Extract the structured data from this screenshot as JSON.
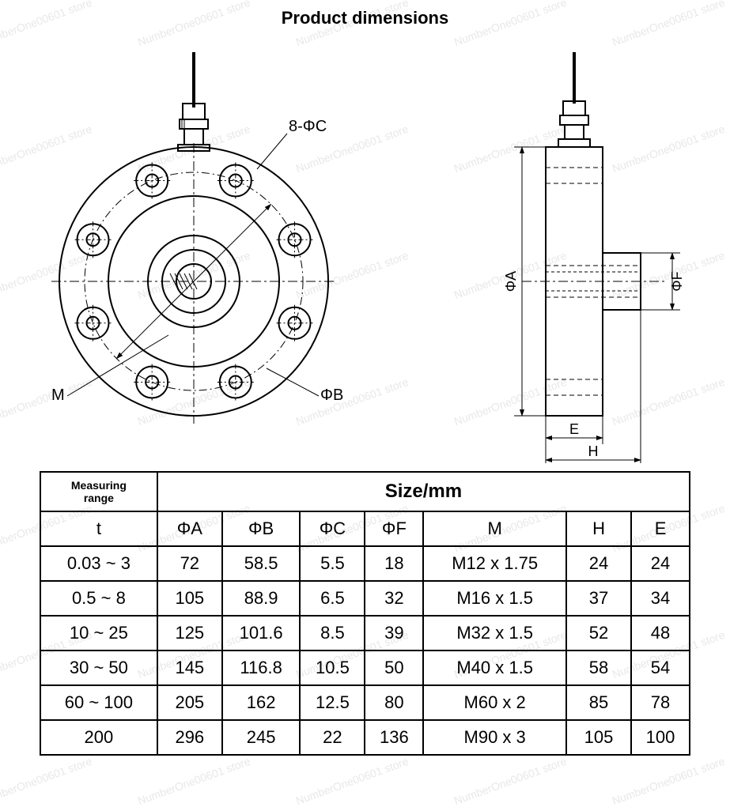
{
  "title": "Product dimensions",
  "watermark_text": "NumberOne00601 store",
  "diagram": {
    "stroke": "#000000",
    "stroke_width": 2,
    "dim_stroke": "#000000",
    "dim_width": 1,
    "dash": "8,4,2,4",
    "front": {
      "outer_r": 170,
      "inner_r1": 108,
      "inner_r2": 58,
      "hub_r1": 40,
      "hub_r2": 22,
      "bolt_circle_r": 138,
      "bolt_r": 20,
      "bolt_inner_r": 8,
      "bolt_count": 8
    },
    "labels": {
      "holes": "8-ΦC",
      "m": "M",
      "phiB": "ΦB",
      "phiA": "ΦA",
      "phiF": "ΦF",
      "E": "E",
      "H": "H"
    },
    "side": {
      "body_w": 72,
      "body_h": 340,
      "boss_w": 48,
      "boss_h": 72,
      "gland_h": 60
    }
  },
  "table": {
    "header_left": [
      "Measuring",
      "range"
    ],
    "header_right": "Size/mm",
    "subheaders": [
      "t",
      "ΦA",
      "ΦB",
      "ΦC",
      "ΦF",
      "M",
      "H",
      "E"
    ],
    "col_widths_pct": [
      18,
      10,
      12,
      10,
      9,
      22,
      10,
      9
    ],
    "rows": [
      [
        "0.03 ~ 3",
        "72",
        "58.5",
        "5.5",
        "18",
        "M12 x 1.75",
        "24",
        "24"
      ],
      [
        "0.5 ~ 8",
        "105",
        "88.9",
        "6.5",
        "32",
        "M16 x 1.5",
        "37",
        "34"
      ],
      [
        "10 ~ 25",
        "125",
        "101.6",
        "8.5",
        "39",
        "M32 x 1.5",
        "52",
        "48"
      ],
      [
        "30 ~ 50",
        "145",
        "116.8",
        "10.5",
        "50",
        "M40 x 1.5",
        "58",
        "54"
      ],
      [
        "60 ~ 100",
        "205",
        "162",
        "12.5",
        "80",
        "M60  x  2",
        "85",
        "78"
      ],
      [
        "200",
        "296",
        "245",
        "22",
        "136",
        "M90  x  3",
        "105",
        "100"
      ]
    ]
  }
}
